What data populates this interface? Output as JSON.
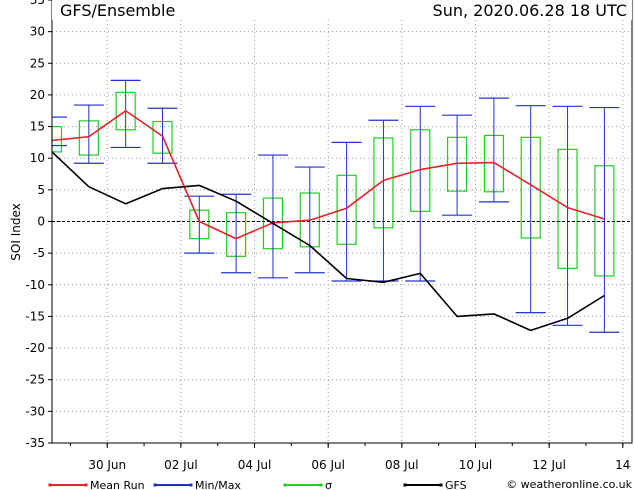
{
  "header": {
    "title": "GFS/Ensemble",
    "datetime": "Sun, 2020.06.28   18 UTC"
  },
  "footer": {
    "credit": "© weatheronline.co.uk"
  },
  "chart_data": {
    "type": "line",
    "ylabel": "SOI Index",
    "ylim": [
      -35,
      35
    ],
    "y_ticks": [
      -35,
      -30,
      -25,
      -20,
      -15,
      -10,
      -5,
      0,
      5,
      10,
      15,
      20,
      25,
      30,
      35
    ],
    "x_tick_labels": [
      "30 Jun",
      "02 Jul",
      "04 Jul",
      "06 Jul",
      "08 Jul",
      "10 Jul",
      "12 Jul",
      "14"
    ],
    "x_tick_days": [
      2,
      4,
      6,
      8,
      10,
      12,
      14,
      16
    ],
    "xlim": [
      0.5,
      16.25
    ],
    "x": [
      0.5,
      1.5,
      2.5,
      3.5,
      4.5,
      5.5,
      6.5,
      7.5,
      8.5,
      9.5,
      10.5,
      11.5,
      12.5,
      13.5,
      14.5,
      15.5,
      16.25
    ],
    "grid": true,
    "legend": "bottom",
    "series": [
      {
        "name": "Mean Run",
        "color": "#e8222a",
        "values": [
          12.8,
          13.4,
          17.5,
          13.5,
          0,
          -2.7,
          -0.2,
          0.2,
          2.1,
          6.5,
          8.2,
          9.2,
          9.3,
          5.8,
          2.2,
          0.4,
          null
        ]
      },
      {
        "name": "GFS",
        "color": "#000000",
        "values": [
          11,
          5.5,
          2.8,
          5.2,
          5.7,
          3.2,
          -0.3,
          -3.8,
          -9,
          -9.6,
          -8.2,
          -15,
          -14.6,
          -17.2,
          -15.3,
          -11.7,
          null
        ]
      }
    ],
    "minmax": {
      "name": "Min/Max",
      "color": "#2233cc",
      "min": [
        12,
        9.2,
        11.7,
        9.2,
        -5,
        -8.1,
        -8.9,
        -8.1,
        -9.4,
        -9.4,
        -9.4,
        1,
        3.1,
        -14.4,
        -16.4,
        -17.5,
        null
      ],
      "max": [
        16.5,
        18.4,
        22.3,
        17.9,
        4,
        4.3,
        10.5,
        8.6,
        12.5,
        16,
        18.2,
        16.8,
        19.5,
        18.3,
        18.2,
        18,
        null
      ]
    },
    "sigma": {
      "name": "σ",
      "color": "#22cc22",
      "low": [
        11,
        10.5,
        14.5,
        10.8,
        -2.7,
        -5.5,
        -4.3,
        -4,
        -3.6,
        -1,
        1.6,
        4.8,
        4.7,
        -2.6,
        -7.4,
        -8.6,
        null
      ],
      "high": [
        15,
        15.9,
        20.4,
        15.8,
        1.8,
        1.4,
        3.7,
        4.5,
        7.3,
        13.2,
        14.5,
        13.3,
        13.6,
        13.3,
        11.4,
        8.8,
        null
      ]
    },
    "legend_items": [
      {
        "label": "Mean Run",
        "color": "#e8222a"
      },
      {
        "label": "Min/Max",
        "color": "#2233cc"
      },
      {
        "label": "σ",
        "color": "#22cc22"
      },
      {
        "label": "GFS",
        "color": "#000000"
      }
    ]
  }
}
